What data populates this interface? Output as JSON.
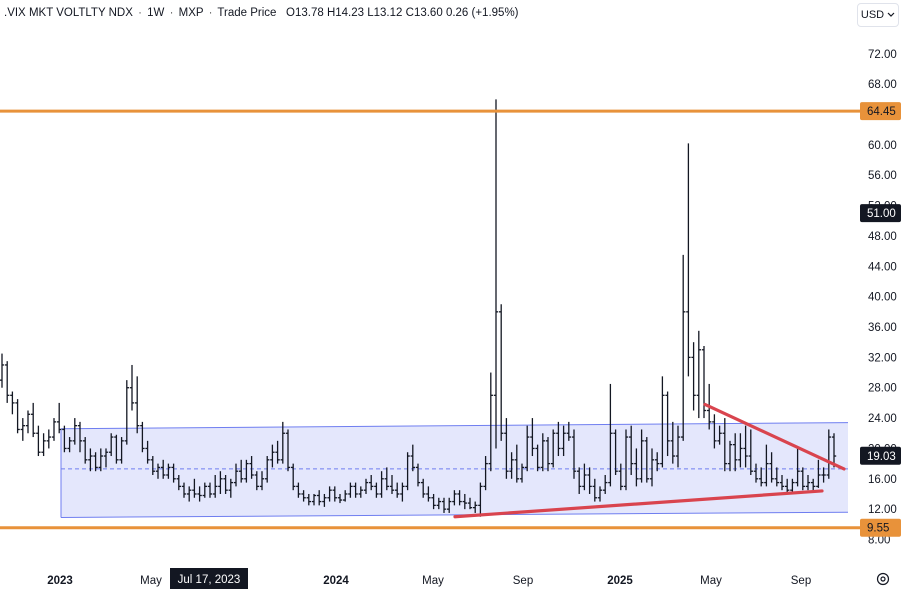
{
  "header": {
    "symbol": ".VIX",
    "name": "MKT VOLTLTY NDX",
    "interval": "1W",
    "exchange": "MXP",
    "price_type": "Trade Price",
    "open": "O13.78",
    "high": "H14.23",
    "low": "L13.12",
    "close": "C13.60",
    "change": "0.26 (+1.95%)"
  },
  "currency": {
    "label": "USD"
  },
  "colors": {
    "bar": "#131722",
    "channel_fill": "#dfe3fb",
    "channel_line": "#6f7ef0",
    "horizontal_line": "#e8923a",
    "trendline": "#d9444e",
    "label_dark": "#131722"
  },
  "crosshair_label": "Jul 17, 2023",
  "chart_data": {
    "type": "bar",
    "subtype": "ohlc",
    "y_axis": {
      "ticks": [
        "72.00",
        "68.00",
        "64.00",
        "60.00",
        "56.00",
        "52.00",
        "48.00",
        "44.00",
        "40.00",
        "36.00",
        "32.00",
        "28.00",
        "24.00",
        "20.00",
        "16.00",
        "12.00",
        "8.00"
      ],
      "ylim": [
        5.3,
        75.4
      ]
    },
    "x_axis": {
      "ticks": [
        "2023",
        "May",
        "2024",
        "May",
        "Sep",
        "2025",
        "May",
        "Sep"
      ]
    },
    "price_labels": [
      {
        "value": "64.45",
        "style": "orange"
      },
      {
        "value": "51.00",
        "style": "dark"
      },
      {
        "value": "19.03",
        "style": "dark"
      },
      {
        "value": "9.55",
        "style": "orange"
      }
    ],
    "horizontal_lines": [
      64.45,
      9.55
    ],
    "channel": {
      "top": [
        22.6,
        23.4
      ],
      "bottom": [
        10.9,
        11.6
      ]
    },
    "dashed_level": 17.3,
    "trendlines": [
      {
        "name": "support",
        "from": [
          "2024-05",
          11.0
        ],
        "to": [
          "2025-10",
          14.4
        ]
      },
      {
        "name": "resistance",
        "from": [
          "2025-05",
          25.8
        ],
        "to": [
          "2025-10",
          17.3
        ]
      }
    ],
    "ohlc": [
      [
        29,
        32.5,
        28,
        31
      ],
      [
        31,
        31.5,
        26,
        27
      ],
      [
        27,
        27.5,
        24.5,
        26
      ],
      [
        26,
        26.5,
        22,
        22.5
      ],
      [
        22.5,
        24,
        21,
        23
      ],
      [
        23,
        25,
        22,
        24.5
      ],
      [
        24.5,
        26,
        21.5,
        22
      ],
      [
        22,
        23,
        19,
        19.5
      ],
      [
        19.5,
        22,
        19,
        21
      ],
      [
        21,
        22.5,
        20,
        21.5
      ],
      [
        21.5,
        24,
        21,
        23.5
      ],
      [
        23.5,
        26,
        22,
        22.5
      ],
      [
        22.5,
        23,
        19.5,
        20
      ],
      [
        20,
        21.5,
        19.5,
        21
      ],
      [
        21,
        24,
        20.5,
        23
      ],
      [
        23,
        23.5,
        19.5,
        21
      ],
      [
        21,
        21.5,
        18,
        18.5
      ],
      [
        18.5,
        20,
        17,
        19
      ],
      [
        19,
        19.5,
        17,
        17.5
      ],
      [
        17.5,
        20,
        17,
        19
      ],
      [
        19,
        20,
        17.5,
        19.5
      ],
      [
        19.5,
        22,
        19,
        21.5
      ],
      [
        21.5,
        21.8,
        18,
        18.5
      ],
      [
        18.5,
        21.5,
        18,
        21
      ],
      [
        21,
        29,
        20.5,
        28
      ],
      [
        28,
        31,
        25,
        26
      ],
      [
        26,
        29.5,
        22,
        23
      ],
      [
        23,
        23.5,
        19.5,
        20
      ],
      [
        20,
        21,
        18,
        18.5
      ],
      [
        18.5,
        19,
        16.5,
        17
      ],
      [
        17,
        18,
        16,
        17.5
      ],
      [
        17.5,
        18.5,
        16,
        16.5
      ],
      [
        16.5,
        18,
        16,
        17.5
      ],
      [
        17.5,
        18,
        15.5,
        16
      ],
      [
        16,
        16.5,
        14.5,
        15
      ],
      [
        15,
        15.5,
        13.5,
        14
      ],
      [
        14,
        15,
        13,
        14.5
      ],
      [
        14.5,
        16,
        13.5,
        14
      ],
      [
        14,
        15,
        13,
        13.8
      ],
      [
        13.8,
        15.5,
        13.5,
        15
      ],
      [
        15,
        15.5,
        13.5,
        14
      ],
      [
        14,
        16.5,
        13.5,
        15
      ],
      [
        15,
        17,
        14,
        16
      ],
      [
        16,
        16.5,
        14,
        14.5
      ],
      [
        14.5,
        16,
        13.5,
        15.5
      ],
      [
        15.5,
        18,
        15,
        17
      ],
      [
        17,
        18.5,
        15.5,
        16
      ],
      [
        16,
        18.5,
        15.5,
        18
      ],
      [
        18,
        19,
        16,
        16.5
      ],
      [
        16.5,
        17,
        14.5,
        15
      ],
      [
        15,
        17,
        14.5,
        16
      ],
      [
        16,
        19,
        15.5,
        18.5
      ],
      [
        18.5,
        20.5,
        17.5,
        19.5
      ],
      [
        19.5,
        21,
        18,
        18.5
      ],
      [
        18.5,
        23.5,
        18,
        22
      ],
      [
        22,
        22.5,
        17,
        17.5
      ],
      [
        17.5,
        18,
        14.5,
        15
      ],
      [
        15,
        15.5,
        13.5,
        14
      ],
      [
        14,
        14.5,
        13,
        13.5
      ],
      [
        13.5,
        14,
        12.5,
        13
      ],
      [
        13,
        14,
        12.5,
        13.8
      ],
      [
        13.8,
        14.5,
        12.5,
        13
      ],
      [
        13,
        14,
        12.3,
        13.5
      ],
      [
        13.5,
        15,
        13,
        14.5
      ],
      [
        14.5,
        15,
        13,
        13.5
      ],
      [
        13.5,
        14,
        12.8,
        13.2
      ],
      [
        13.2,
        14.5,
        13,
        14
      ],
      [
        14,
        15.5,
        13.5,
        15
      ],
      [
        15,
        15.5,
        13.5,
        14
      ],
      [
        14,
        15,
        13.5,
        14.5
      ],
      [
        14.5,
        16,
        14,
        15.5
      ],
      [
        15.5,
        16.5,
        14.5,
        15
      ],
      [
        15,
        15.5,
        13.5,
        14
      ],
      [
        14,
        17,
        13.5,
        16
      ],
      [
        16,
        17.5,
        14.5,
        15
      ],
      [
        15,
        16.5,
        14,
        14.5
      ],
      [
        14.5,
        15.5,
        13.5,
        14
      ],
      [
        14,
        15.5,
        13,
        15
      ],
      [
        15,
        19.5,
        14.5,
        19
      ],
      [
        19,
        20.5,
        17,
        17.5
      ],
      [
        17.5,
        18,
        15,
        15.5
      ],
      [
        15.5,
        16,
        13.5,
        14
      ],
      [
        14,
        15,
        13,
        13.5
      ],
      [
        13.5,
        14,
        12,
        12.5
      ],
      [
        12.5,
        13.5,
        12,
        13
      ],
      [
        13,
        13.5,
        11.5,
        12
      ],
      [
        12,
        13.5,
        11.5,
        13
      ],
      [
        13,
        14.5,
        12.5,
        14
      ],
      [
        14,
        14.5,
        12.5,
        13
      ],
      [
        13,
        14,
        12,
        12.8
      ],
      [
        12.8,
        13.5,
        12,
        12.2
      ],
      [
        12.2,
        13,
        11.5,
        12.5
      ],
      [
        12.5,
        15.5,
        11,
        15
      ],
      [
        15,
        19,
        14.5,
        18
      ],
      [
        18,
        30,
        17,
        27
      ],
      [
        27,
        66,
        20,
        38
      ],
      [
        38,
        39,
        21,
        22
      ],
      [
        22,
        24,
        16,
        17
      ],
      [
        17,
        19.5,
        16,
        18.5
      ],
      [
        18.5,
        20.5,
        15.5,
        16
      ],
      [
        16,
        18,
        15.5,
        17.5
      ],
      [
        17.5,
        23,
        17,
        21.5
      ],
      [
        21.5,
        24,
        19,
        20
      ],
      [
        20,
        20.5,
        17,
        17.5
      ],
      [
        17.5,
        22,
        17,
        21
      ],
      [
        21,
        21.5,
        17,
        18
      ],
      [
        18,
        22.5,
        17.5,
        22
      ],
      [
        22,
        23.5,
        19,
        20
      ],
      [
        20,
        23,
        19,
        22
      ],
      [
        22,
        23.5,
        21,
        21.5
      ],
      [
        21.5,
        22.5,
        16,
        17
      ],
      [
        17,
        17.5,
        14,
        15
      ],
      [
        15,
        18,
        14.5,
        16.5
      ],
      [
        16.5,
        17.5,
        14,
        15
      ],
      [
        15,
        16,
        13,
        13.5
      ],
      [
        13.5,
        15,
        13,
        14.5
      ],
      [
        14.5,
        16.5,
        14,
        15.5
      ],
      [
        15.5,
        28.5,
        15,
        22
      ],
      [
        22,
        22.5,
        16.5,
        17
      ],
      [
        17,
        18,
        14.5,
        15
      ],
      [
        15,
        22.5,
        14.5,
        21.5
      ],
      [
        21.5,
        23,
        16.5,
        18
      ],
      [
        18,
        20,
        15,
        16
      ],
      [
        16,
        22.5,
        15.5,
        21
      ],
      [
        21,
        21.5,
        15.5,
        16
      ],
      [
        16,
        20,
        15,
        18.5
      ],
      [
        18.5,
        19.5,
        17,
        18
      ],
      [
        18,
        29.5,
        17.5,
        27
      ],
      [
        27,
        27.5,
        19,
        21
      ],
      [
        21,
        23.5,
        18,
        19
      ],
      [
        19,
        23,
        17.5,
        21.5
      ],
      [
        21.5,
        45.5,
        21,
        38
      ],
      [
        38,
        60.2,
        29.5,
        32
      ],
      [
        32,
        34,
        25,
        27
      ],
      [
        27,
        35.5,
        24,
        33
      ],
      [
        33,
        33.5,
        24,
        25
      ],
      [
        25,
        28.5,
        22.5,
        23.5
      ],
      [
        23.5,
        24.5,
        20,
        21
      ],
      [
        21,
        23,
        20.5,
        22
      ],
      [
        22,
        24,
        17,
        18
      ],
      [
        18,
        21,
        17,
        20.5
      ],
      [
        20.5,
        22,
        17,
        18.5
      ],
      [
        18.5,
        22,
        17.5,
        20
      ],
      [
        20,
        23,
        17.5,
        19
      ],
      [
        19,
        22.5,
        16.5,
        17
      ],
      [
        17,
        18,
        15.5,
        16
      ],
      [
        16,
        17.5,
        15,
        15.5
      ],
      [
        15.5,
        20.5,
        15,
        18
      ],
      [
        18,
        19.5,
        15.5,
        16
      ],
      [
        16,
        17.5,
        15,
        15.5
      ],
      [
        15.5,
        16.5,
        14.5,
        15
      ],
      [
        15,
        16,
        14,
        14.5
      ],
      [
        14.5,
        16,
        14,
        15.5
      ],
      [
        15.5,
        20,
        15,
        17
      ],
      [
        17,
        17.5,
        14.5,
        15
      ],
      [
        15,
        16.5,
        14.5,
        15.5
      ],
      [
        15.5,
        16,
        14.5,
        15
      ],
      [
        15,
        18.5,
        14.8,
        16.5
      ],
      [
        16.5,
        17.5,
        15.5,
        16.5
      ],
      [
        16.5,
        22.5,
        16,
        21.5
      ],
      [
        21.5,
        22,
        17.5,
        19
      ]
    ]
  }
}
